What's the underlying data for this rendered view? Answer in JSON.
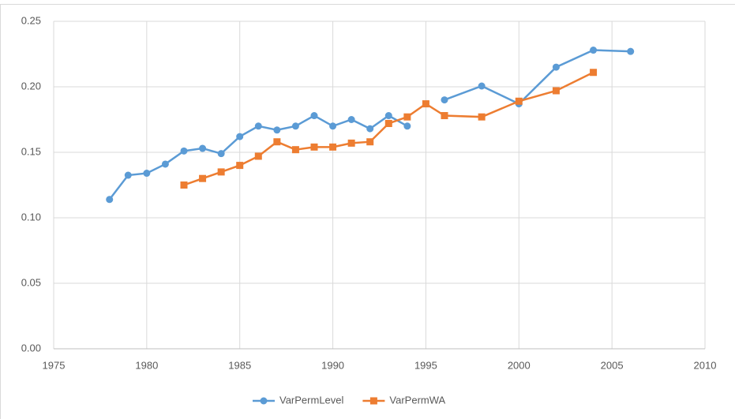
{
  "chart_data": {
    "type": "line",
    "x": [
      1978,
      1979,
      1980,
      1981,
      1982,
      1983,
      1984,
      1985,
      1986,
      1987,
      1988,
      1989,
      1990,
      1991,
      1992,
      1993,
      1994,
      1995,
      1996,
      1998,
      2000,
      2002,
      2004,
      2006
    ],
    "series": [
      {
        "name": "VarPermLevel",
        "color": "#5b9bd5",
        "marker": "circle",
        "values": [
          0.114,
          0.1325,
          0.134,
          0.141,
          0.151,
          0.153,
          0.149,
          0.162,
          0.17,
          0.167,
          0.17,
          0.178,
          0.17,
          0.175,
          0.168,
          0.178,
          0.17,
          null,
          0.19,
          0.2006,
          0.187,
          0.215,
          0.228,
          0.227
        ]
      },
      {
        "name": "VarPermWA",
        "color": "#ed7d31",
        "marker": "square",
        "values": [
          null,
          null,
          null,
          null,
          0.125,
          0.13,
          0.135,
          0.14,
          0.147,
          0.158,
          0.152,
          0.154,
          0.154,
          0.157,
          0.158,
          0.172,
          0.177,
          0.187,
          0.178,
          0.177,
          0.189,
          0.197,
          0.211,
          null
        ]
      }
    ],
    "xlim": [
      1975,
      2010
    ],
    "xticks": [
      1975,
      1980,
      1985,
      1990,
      1995,
      2000,
      2005,
      2010
    ],
    "ylim": [
      0,
      0.25
    ],
    "yticks": [
      {
        "value": 0,
        "label": "0.00"
      },
      {
        "value": 0.05,
        "label": "0.05"
      },
      {
        "value": 0.1,
        "label": "0.10"
      },
      {
        "value": 0.15,
        "label": "0.15"
      },
      {
        "value": 0.2,
        "label": "0.20"
      },
      {
        "value": 0.25,
        "label": "0.25"
      }
    ],
    "grid": true,
    "legend": "bottom"
  }
}
